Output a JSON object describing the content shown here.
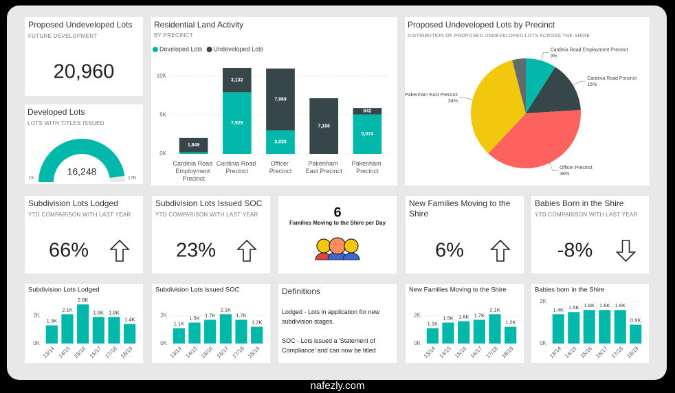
{
  "watermark": "nafezly.com",
  "cards": [
    {
      "title": "Proposed Undeveloped Lots",
      "subtitle": "FUTURE DEVELOPMENT",
      "value": "20,960"
    },
    {
      "title": "Subdivision Lots Lodged",
      "subtitle": "YTD COMPARISON WITH LAST YEAR",
      "value": "66%",
      "trend": "up"
    },
    {
      "title": "Subdivision Lots Issued SOC",
      "subtitle": "YTD COMPARISON WITH LAST YEAR",
      "value": "23%",
      "trend": "up"
    },
    {
      "value": "6",
      "caption": "Families Moving to the Shire per Day"
    },
    {
      "title": "New Families Moving to the Shire",
      "value": "6%",
      "trend": "up"
    },
    {
      "title": "Babies Born in the Shire",
      "subtitle": "YTD COMPARISON WITH LAST YEAR",
      "value": "-8%",
      "trend": "down"
    }
  ],
  "definitions": {
    "title": "Definitions",
    "items": [
      "Lodged - Lots in application for new subdivision stages.",
      "SOC - Lots issued a 'Statement of Compliance' and can now be titled"
    ]
  },
  "chart_data": [
    {
      "type": "stacked_bar",
      "title": "Residential Land Activity",
      "subtitle": "BY PRECINCT",
      "categories": [
        "Cardinia Road Employment Precinct",
        "Cardinia Road Precinct",
        "Officer Precinct",
        "Pakenham East Precinct",
        "Pakenham Precinct"
      ],
      "series": [
        {
          "name": "Developed Lots",
          "color": "#01b8aa",
          "values": [
            200,
            7929,
            3030,
            0,
            5074
          ],
          "value_labels": [
            null,
            "7,929",
            "3,030",
            null,
            "5,074"
          ]
        },
        {
          "name": "Undeveloped Lots",
          "color": "#374649",
          "values": [
            1849,
            3132,
            7969,
            7168,
            842
          ],
          "value_labels": [
            "1,849",
            "3,132",
            "7,969",
            "7,168",
            "842"
          ]
        }
      ],
      "ylim": [
        0,
        11500
      ],
      "yticks": [
        {
          "value": 0,
          "label": "0K"
        },
        {
          "value": 5000,
          "label": "5K"
        },
        {
          "value": 10000,
          "label": "10K"
        }
      ],
      "grid": true,
      "legend": "top-left"
    },
    {
      "type": "pie",
      "title": "Proposed Undeveloped Lots by Precinct",
      "subtitle": "DISTRIBUTION OF PROPOSED UNDEVELOPED LOTS ACROSS THE SHIRE",
      "categories": [
        "Cardinia Road Employment Precinct",
        "Cardinia Road Precinct",
        "Officer Precinct",
        "Pakenham East Precinct",
        null
      ],
      "values": [
        9,
        15,
        38,
        34,
        4
      ],
      "value_labels": [
        "9%",
        "15%",
        "38%",
        "34%",
        null
      ],
      "colors": [
        "#01b8aa",
        "#374649",
        "#fd625e",
        "#f2c80f",
        "#5f6b6d"
      ]
    },
    {
      "type": "bar",
      "title": "Subdivision Lots Lodged",
      "categories": [
        "13/14",
        "14/15",
        "15/16",
        "16/17",
        "17/18",
        "18/19"
      ],
      "values": [
        1300,
        2100,
        2800,
        1900,
        1900,
        1400
      ],
      "value_labels": [
        "1.3K",
        "2.1K",
        "2.8K",
        "1.9K",
        "1.9K",
        "1.4K"
      ],
      "color": "#01b8aa",
      "ylim": [
        0,
        3000
      ],
      "yticks": [
        {
          "value": 0,
          "label": "0K"
        },
        {
          "value": 2000,
          "label": "2K"
        }
      ],
      "grid": true
    },
    {
      "type": "bar",
      "title": "Subdivision Lots issued SOC",
      "categories": [
        "13/14",
        "14/15",
        "15/16",
        "16/17",
        "17/18",
        "18/19"
      ],
      "values": [
        1100,
        1500,
        1700,
        2100,
        1700,
        1200
      ],
      "value_labels": [
        "1.1K",
        "1.5K",
        "1.7K",
        "2.1K",
        "1.7K",
        "1.2K"
      ],
      "color": "#01b8aa",
      "ylim": [
        0,
        3000
      ],
      "yticks": [
        {
          "value": 0,
          "label": "0K"
        },
        {
          "value": 2000,
          "label": "2K"
        }
      ],
      "grid": true
    },
    {
      "type": "bar",
      "title": "New Families Moving to the Shire",
      "categories": [
        "13/14",
        "14/15",
        "15/16",
        "16/17",
        "17/18",
        "18/19"
      ],
      "values": [
        1100,
        1500,
        1600,
        1700,
        2100,
        1200
      ],
      "value_labels": [
        "1.1K",
        "1.5K",
        "1.6K",
        "1.7K",
        "2.1K",
        "1.2K"
      ],
      "color": "#01b8aa",
      "ylim": [
        0,
        3000
      ],
      "yticks": [
        {
          "value": 0,
          "label": "0K"
        },
        {
          "value": 2000,
          "label": "2K"
        }
      ],
      "grid": true
    },
    {
      "type": "bar",
      "title": "Babies born in the Shire",
      "categories": [
        "13/14",
        "14/15",
        "15/16",
        "16/17",
        "17/18",
        "18/19"
      ],
      "values": [
        1400,
        1500,
        1600,
        1600,
        1600,
        900
      ],
      "value_labels": [
        "1.4K",
        "1.5K",
        "1.6K",
        "1.6K",
        "1.6K",
        "0.9K"
      ],
      "color": "#01b8aa",
      "ylim": [
        0,
        2000
      ],
      "yticks": [
        {
          "value": 0,
          "label": "0K"
        },
        {
          "value": 2000,
          "label": "2K"
        }
      ],
      "grid": true
    },
    {
      "type": "gauge",
      "title": "Developed Lots",
      "subtitle": "LOTS WITH TITLES ISSUED",
      "value": 16248,
      "value_label": "16,248",
      "min": {
        "value": 1000,
        "label": "1K"
      },
      "max": {
        "value": 17000,
        "label": "17K"
      },
      "color": "#01b8aa"
    }
  ]
}
